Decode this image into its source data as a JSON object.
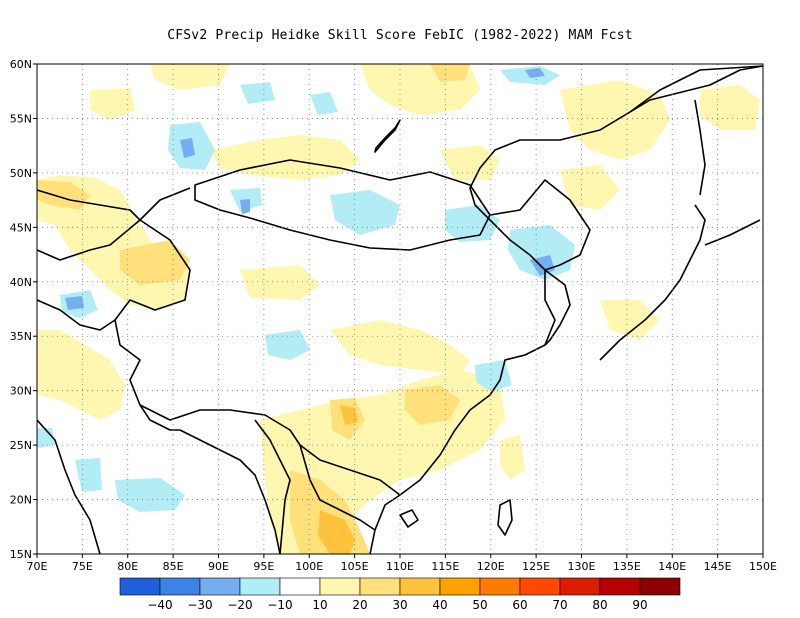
{
  "title": "CFSv2 Precip Heidke Skill Score FebIC (1982-2022) MAM Fcst",
  "map": {
    "region": "East and South Asia",
    "projection": "lat-lon",
    "lon_range": [
      70,
      150
    ],
    "lat_range": [
      15,
      60
    ],
    "gridlines": "dotted",
    "lon_ticks": [
      "70E",
      "75E",
      "80E",
      "85E",
      "90E",
      "95E",
      "100E",
      "105E",
      "110E",
      "115E",
      "120E",
      "125E",
      "130E",
      "135E",
      "140E",
      "145E",
      "150E"
    ],
    "lat_ticks": [
      "60N",
      "55N",
      "50N",
      "45N",
      "40N",
      "35N",
      "30N",
      "25N",
      "20N",
      "15N"
    ]
  },
  "colorbar": {
    "orientation": "horizontal",
    "labels": [
      "−40",
      "−30",
      "−20",
      "−10",
      "10",
      "20",
      "30",
      "40",
      "50",
      "60",
      "70",
      "80",
      "90"
    ],
    "colors": [
      "#1f5fdc",
      "#3d82e6",
      "#75aff2",
      "#b2ecf5",
      "#ffffff",
      "#fff6b0",
      "#ffe07a",
      "#ffc23c",
      "#ffa200",
      "#ff7a00",
      "#ff4800",
      "#dc1e00",
      "#b40000",
      "#8c0000"
    ]
  }
}
